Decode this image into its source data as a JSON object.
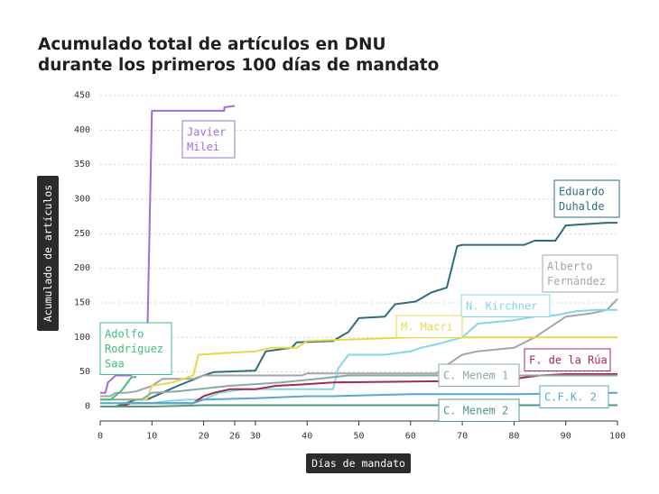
{
  "chart_data": {
    "type": "line",
    "title": [
      "Acumulado total de artículos en DNU",
      "durante los primeros 100 días de mandato"
    ],
    "xlabel": "Días de mandato",
    "ylabel": "Acumulado de artículos",
    "xlim": [
      0,
      100
    ],
    "ylim": [
      0,
      450
    ],
    "xticks": [
      0,
      10,
      20,
      26,
      30,
      40,
      50,
      60,
      70,
      80,
      90,
      100
    ],
    "yticks": [
      0,
      50,
      100,
      150,
      200,
      250,
      300,
      350,
      400,
      450
    ],
    "grid": "horizontal-dotted",
    "series": [
      {
        "name": "Javier Milei",
        "label_lines": [
          "Javier",
          "Milei"
        ],
        "color": "#9b6fd6",
        "points": [
          [
            0,
            20
          ],
          [
            1,
            20
          ],
          [
            1.5,
            35
          ],
          [
            3,
            45
          ],
          [
            6,
            45
          ],
          [
            6,
            60
          ],
          [
            9,
            60
          ],
          [
            10,
            428
          ],
          [
            20,
            428
          ],
          [
            22,
            428
          ],
          [
            24,
            428
          ],
          [
            24,
            433
          ],
          [
            26,
            435
          ]
        ]
      },
      {
        "name": "Eduardo Duhalde",
        "label_lines": [
          "Eduardo",
          "Duhalde"
        ],
        "color": "#2e6e7c",
        "points": [
          [
            0,
            0
          ],
          [
            3,
            0
          ],
          [
            5,
            5
          ],
          [
            7,
            10
          ],
          [
            9,
            10
          ],
          [
            12,
            20
          ],
          [
            15,
            30
          ],
          [
            20,
            45
          ],
          [
            22,
            50
          ],
          [
            30,
            52
          ],
          [
            32,
            80
          ],
          [
            37,
            85
          ],
          [
            38,
            93
          ],
          [
            45,
            95
          ],
          [
            48,
            108
          ],
          [
            50,
            128
          ],
          [
            55,
            130
          ],
          [
            57,
            148
          ],
          [
            61,
            152
          ],
          [
            64,
            165
          ],
          [
            67,
            172
          ],
          [
            69,
            232
          ],
          [
            70,
            234
          ],
          [
            82,
            234
          ],
          [
            84,
            240
          ],
          [
            88,
            240
          ],
          [
            90,
            262
          ],
          [
            98,
            266
          ],
          [
            100,
            266
          ]
        ]
      },
      {
        "name": "Alberto Fernández",
        "label_lines": [
          "Alberto",
          "Fernández"
        ],
        "color": "#a0a7ab",
        "points": [
          [
            0,
            15
          ],
          [
            2,
            15
          ],
          [
            3,
            20
          ],
          [
            5,
            20
          ],
          [
            7,
            22
          ],
          [
            10,
            30
          ],
          [
            12,
            40
          ],
          [
            18,
            40
          ],
          [
            20,
            45
          ],
          [
            39,
            45
          ],
          [
            40,
            48
          ],
          [
            50,
            48
          ],
          [
            65,
            48
          ],
          [
            67,
            60
          ],
          [
            70,
            75
          ],
          [
            73,
            80
          ],
          [
            80,
            85
          ],
          [
            84,
            100
          ],
          [
            90,
            130
          ],
          [
            95,
            135
          ],
          [
            98,
            140
          ],
          [
            100,
            156
          ]
        ]
      },
      {
        "name": "N. Kirchner",
        "label_lines": [
          "N. Kirchner"
        ],
        "color": "#83d6e6",
        "points": [
          [
            0,
            5
          ],
          [
            10,
            5
          ],
          [
            13,
            8
          ],
          [
            17,
            10
          ],
          [
            20,
            10
          ],
          [
            23,
            20
          ],
          [
            28,
            25
          ],
          [
            45,
            25
          ],
          [
            46,
            55
          ],
          [
            48,
            75
          ],
          [
            55,
            75
          ],
          [
            60,
            80
          ],
          [
            62,
            85
          ],
          [
            65,
            90
          ],
          [
            70,
            100
          ],
          [
            73,
            120
          ],
          [
            80,
            125
          ],
          [
            84,
            130
          ],
          [
            88,
            132
          ],
          [
            92,
            138
          ],
          [
            96,
            140
          ],
          [
            100,
            140
          ]
        ]
      },
      {
        "name": "M. Macri",
        "label_lines": [
          "M. Macri"
        ],
        "color": "#e6d84a",
        "points": [
          [
            0,
            10
          ],
          [
            9,
            10
          ],
          [
            10,
            30
          ],
          [
            14,
            35
          ],
          [
            18,
            45
          ],
          [
            19,
            75
          ],
          [
            23,
            77
          ],
          [
            30,
            80
          ],
          [
            33,
            85
          ],
          [
            38,
            85
          ],
          [
            40,
            95
          ],
          [
            52,
            98
          ],
          [
            60,
            100
          ],
          [
            100,
            100
          ]
        ]
      },
      {
        "name": "F. de la Rúa",
        "label_lines": [
          "F. de la Rúa"
        ],
        "color": "#a8294a",
        "points": [
          [
            0,
            0
          ],
          [
            4,
            0
          ],
          [
            6,
            5
          ],
          [
            18,
            5
          ],
          [
            20,
            15
          ],
          [
            22,
            20
          ],
          [
            25,
            25
          ],
          [
            30,
            25
          ],
          [
            34,
            30
          ],
          [
            39,
            32
          ],
          [
            45,
            35
          ],
          [
            70,
            37
          ],
          [
            80,
            40
          ],
          [
            85,
            45
          ],
          [
            90,
            47
          ],
          [
            100,
            47
          ]
        ]
      },
      {
        "name": "C. Menem 1",
        "label_lines": [
          "C. Menem 1"
        ],
        "color": "#8fa7a4",
        "points": [
          [
            0,
            10
          ],
          [
            8,
            10
          ],
          [
            10,
            20
          ],
          [
            15,
            22
          ],
          [
            25,
            30
          ],
          [
            35,
            35
          ],
          [
            42,
            40
          ],
          [
            48,
            45
          ],
          [
            60,
            45
          ],
          [
            68,
            45
          ],
          [
            100,
            45
          ]
        ]
      },
      {
        "name": "C.F.K. 2",
        "label_lines": [
          "C.F.K. 2"
        ],
        "color": "#5ba8d0",
        "points": [
          [
            0,
            5
          ],
          [
            5,
            5
          ],
          [
            6,
            5
          ],
          [
            18,
            5
          ],
          [
            20,
            10
          ],
          [
            30,
            12
          ],
          [
            40,
            15
          ],
          [
            45,
            15
          ],
          [
            60,
            18
          ],
          [
            80,
            18
          ],
          [
            100,
            20
          ]
        ]
      },
      {
        "name": "C. Menem 2",
        "label_lines": [
          "C. Menem 2"
        ],
        "color": "#4f9b7c",
        "points": [
          [
            0,
            0
          ],
          [
            10,
            0
          ],
          [
            20,
            2
          ],
          [
            60,
            2
          ],
          [
            100,
            2
          ]
        ]
      },
      {
        "name": "Adolfo Rodríguez Saa",
        "label_lines": [
          "Adolfo",
          "Rodríguez",
          "Saa"
        ],
        "color": "#3fbf7f",
        "points": [
          [
            0,
            10
          ],
          [
            2,
            10
          ],
          [
            4,
            22
          ],
          [
            5,
            32
          ],
          [
            6,
            42
          ],
          [
            7,
            43
          ]
        ]
      }
    ]
  }
}
